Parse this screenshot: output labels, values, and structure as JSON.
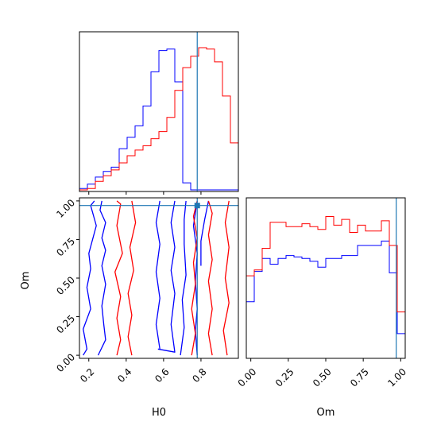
{
  "chart_data": [
    {
      "panel": "H0 marginal",
      "type": "histogram",
      "x_range": [
        0.15,
        1.0
      ],
      "bin_edges": [
        0.15,
        0.1925,
        0.235,
        0.2775,
        0.32,
        0.3625,
        0.405,
        0.4475,
        0.49,
        0.5325,
        0.575,
        0.6175,
        0.66,
        0.7025,
        0.745,
        0.7875,
        0.83,
        0.8725,
        0.915,
        0.9575,
        1.0
      ],
      "truth_line": 0.78,
      "colors": {
        "blue": "#0000ff",
        "red": "#ff0000",
        "truth": "#1f77b4"
      },
      "series": [
        {
          "color": "blue",
          "values": [
            0.01,
            0.04,
            0.09,
            0.13,
            0.16,
            0.29,
            0.37,
            0.45,
            0.59,
            0.83,
            0.98,
            0.99,
            0.76,
            0.05,
            0.0,
            0.0,
            0.0,
            0.0,
            0.0,
            0.0
          ]
        },
        {
          "color": "red",
          "values": [
            0.0,
            0.01,
            0.06,
            0.1,
            0.14,
            0.19,
            0.24,
            0.28,
            0.31,
            0.36,
            0.41,
            0.51,
            0.7,
            0.86,
            0.94,
            1.0,
            0.99,
            0.9,
            0.66,
            0.33
          ]
        }
      ]
    },
    {
      "panel": "H0 vs Om contours",
      "type": "contour",
      "xlabel": "H0",
      "ylabel": "Om",
      "x_ticks": [
        "0.2",
        "0.4",
        "0.6",
        "0.8"
      ],
      "y_ticks": [
        "0.00",
        "0.25",
        "0.50",
        "0.75",
        "1.00"
      ],
      "x_range": [
        0.15,
        1.0
      ],
      "y_range": [
        -0.02,
        1.02
      ],
      "truth_point": [
        0.78,
        0.97
      ],
      "series": [
        {
          "color": "blue",
          "contours": [
            [
              [
                0.17,
                0.0
              ],
              [
                0.19,
                0.04
              ],
              [
                0.17,
                0.17
              ],
              [
                0.21,
                0.3
              ],
              [
                0.19,
                0.44
              ],
              [
                0.21,
                0.56
              ],
              [
                0.2,
                0.66
              ],
              [
                0.24,
                0.84
              ],
              [
                0.21,
                0.97
              ],
              [
                0.23,
                1.0
              ]
            ],
            [
              [
                0.25,
                0.0
              ],
              [
                0.29,
                0.1
              ],
              [
                0.28,
                0.2
              ],
              [
                0.27,
                0.32
              ],
              [
                0.29,
                0.46
              ],
              [
                0.27,
                0.58
              ],
              [
                0.29,
                0.68
              ],
              [
                0.27,
                0.76
              ],
              [
                0.29,
                0.86
              ],
              [
                0.26,
                0.94
              ],
              [
                0.27,
                1.0
              ]
            ],
            [
              [
                0.58,
                0.04
              ],
              [
                0.56,
                0.2
              ],
              [
                0.58,
                0.37
              ],
              [
                0.56,
                0.54
              ],
              [
                0.58,
                0.72
              ],
              [
                0.56,
                0.86
              ],
              [
                0.58,
                1.0
              ]
            ],
            [
              [
                0.57,
                0.04
              ],
              [
                0.66,
                0.02
              ],
              [
                0.64,
                0.2
              ],
              [
                0.66,
                0.4
              ],
              [
                0.64,
                0.55
              ],
              [
                0.66,
                0.7
              ],
              [
                0.64,
                0.86
              ],
              [
                0.66,
                1.0
              ]
            ],
            [
              [
                0.69,
                0.0
              ],
              [
                0.71,
                0.18
              ],
              [
                0.7,
                0.36
              ],
              [
                0.72,
                0.52
              ],
              [
                0.71,
                0.72
              ],
              [
                0.71,
                0.88
              ],
              [
                0.72,
                1.0
              ]
            ],
            [
              [
                0.78,
                1.0
              ],
              [
                0.76,
                0.84
              ],
              [
                0.78,
                0.66
              ],
              [
                0.77,
                0.48
              ],
              [
                0.78,
                0.3
              ],
              [
                0.77,
                0.16
              ],
              [
                0.78,
                0.0
              ]
            ],
            [
              [
                0.84,
                1.0
              ],
              [
                0.82,
                0.88
              ],
              [
                0.8,
                0.74
              ],
              [
                0.8,
                0.58
              ]
            ]
          ]
        },
        {
          "color": "red",
          "contours": [
            [
              [
                0.35,
                0.0
              ],
              [
                0.37,
                0.1
              ],
              [
                0.35,
                0.24
              ],
              [
                0.37,
                0.38
              ],
              [
                0.34,
                0.54
              ],
              [
                0.38,
                0.66
              ],
              [
                0.35,
                0.84
              ],
              [
                0.37,
                0.98
              ],
              [
                0.35,
                1.0
              ]
            ],
            [
              [
                0.43,
                0.0
              ],
              [
                0.41,
                0.12
              ],
              [
                0.43,
                0.26
              ],
              [
                0.41,
                0.4
              ],
              [
                0.44,
                0.55
              ],
              [
                0.42,
                0.7
              ],
              [
                0.45,
                0.86
              ],
              [
                0.43,
                1.0
              ]
            ],
            [
              [
                0.75,
                0.0
              ],
              [
                0.77,
                0.14
              ],
              [
                0.75,
                0.3
              ],
              [
                0.77,
                0.46
              ],
              [
                0.76,
                0.6
              ],
              [
                0.78,
                0.76
              ],
              [
                0.76,
                0.9
              ],
              [
                0.78,
                1.0
              ]
            ],
            [
              [
                0.86,
                0.0
              ],
              [
                0.84,
                0.14
              ],
              [
                0.86,
                0.3
              ],
              [
                0.84,
                0.48
              ],
              [
                0.86,
                0.62
              ],
              [
                0.84,
                0.78
              ],
              [
                0.86,
                0.92
              ],
              [
                0.84,
                1.0
              ]
            ],
            [
              [
                0.94,
                0.0
              ],
              [
                0.92,
                0.16
              ],
              [
                0.95,
                0.34
              ],
              [
                0.93,
                0.5
              ],
              [
                0.95,
                0.7
              ],
              [
                0.93,
                0.86
              ],
              [
                0.95,
                1.0
              ]
            ]
          ]
        }
      ]
    },
    {
      "panel": "Om marginal",
      "type": "histogram",
      "xlabel": "Om",
      "x_ticks": [
        "0.00",
        "0.25",
        "0.50",
        "0.75",
        "1.00"
      ],
      "x_range": [
        -0.03,
        1.03
      ],
      "bin_edges": [
        -0.03,
        0.023,
        0.076,
        0.129,
        0.182,
        0.235,
        0.288,
        0.341,
        0.394,
        0.447,
        0.5,
        0.553,
        0.606,
        0.659,
        0.712,
        0.765,
        0.818,
        0.871,
        0.924,
        0.977,
        1.03
      ],
      "truth_line": 0.97,
      "series": [
        {
          "color": "blue",
          "values": [
            0.38,
            0.59,
            0.68,
            0.64,
            0.68,
            0.7,
            0.69,
            0.68,
            0.66,
            0.62,
            0.68,
            0.68,
            0.7,
            0.7,
            0.77,
            0.77,
            0.77,
            0.8,
            0.58,
            0.16
          ]
        },
        {
          "color": "red",
          "values": [
            0.56,
            0.6,
            0.75,
            0.93,
            0.93,
            0.9,
            0.9,
            0.92,
            0.9,
            0.88,
            0.97,
            0.91,
            0.95,
            0.86,
            0.91,
            0.87,
            0.87,
            0.94,
            0.77,
            0.31
          ]
        }
      ]
    }
  ]
}
